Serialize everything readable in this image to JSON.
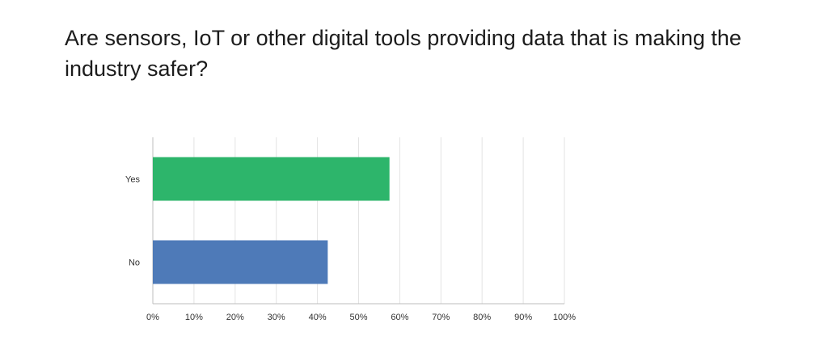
{
  "title": "Are sensors, IoT or other digital tools providing data that is making the industry safer?",
  "chart_data": {
    "type": "bar",
    "orientation": "horizontal",
    "title": "Are sensors, IoT or other digital tools providing data that is making the industry safer?",
    "categories": [
      "Yes",
      "No"
    ],
    "values": [
      57.5,
      42.5
    ],
    "value_unit": "%",
    "xlim": [
      0,
      100
    ],
    "x_ticks": [
      "0%",
      "10%",
      "20%",
      "30%",
      "40%",
      "50%",
      "60%",
      "70%",
      "80%",
      "90%",
      "100%"
    ],
    "bar_colors": [
      "#2db56b",
      "#4e7ab8"
    ],
    "grid": true,
    "legend": "none"
  }
}
